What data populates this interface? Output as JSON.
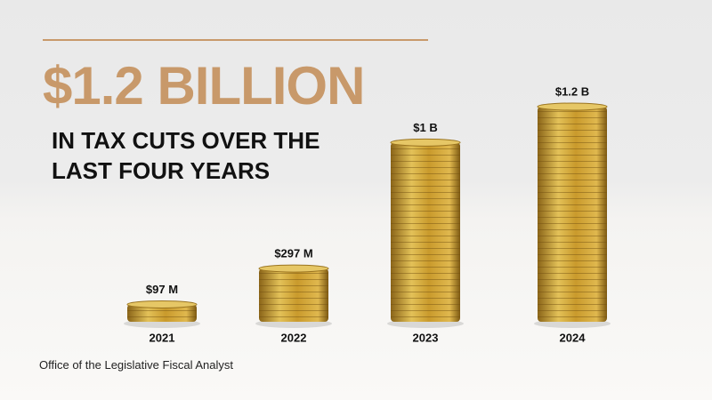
{
  "chart_data": {
    "type": "bar",
    "title": "$1.2 BILLION",
    "subtitle": "IN TAX CUTS OVER THE LAST FOUR YEARS",
    "source": "Office of the Legislative Fiscal Analyst",
    "categories": [
      "2021",
      "2022",
      "2023",
      "2024"
    ],
    "values": [
      97,
      297,
      1000,
      1200
    ],
    "value_labels": [
      "$97 M",
      "$297 M",
      "$1 B",
      "$1.2 B"
    ],
    "color": "#c9a23c"
  }
}
